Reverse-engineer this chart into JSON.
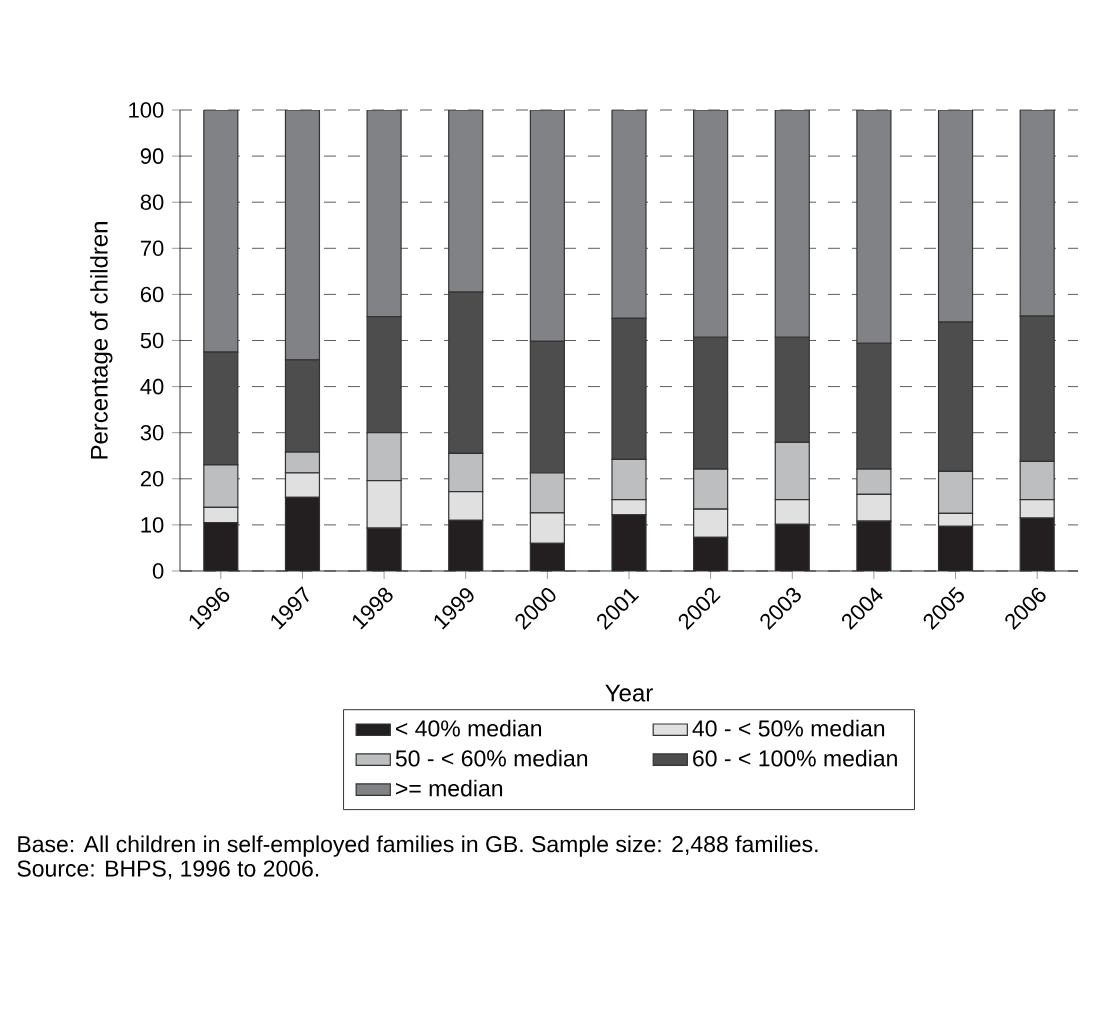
{
  "chart_data": {
    "type": "bar",
    "stacked": true,
    "xlabel": "Year",
    "ylabel": "Percentage of children",
    "categories": [
      "1996",
      "1997",
      "1998",
      "1999",
      "2000",
      "2001",
      "2002",
      "2003",
      "2004",
      "2005",
      "2006"
    ],
    "series": [
      {
        "name": "< 40% median",
        "color": "#231f20",
        "values": [
          10.5,
          16,
          9.3,
          11,
          6,
          12.2,
          7.3,
          10.1,
          10.8,
          9.7,
          11.5
        ]
      },
      {
        "name": "40 - < 50% median",
        "color": "#e0e0e0",
        "values": [
          3.3,
          5.3,
          10.3,
          6.2,
          6.6,
          3.3,
          6.1,
          5.4,
          5.8,
          2.8,
          4
        ]
      },
      {
        "name": "50 - < 60% median",
        "color": "#bcbec0",
        "values": [
          9.2,
          4.5,
          10.4,
          8.3,
          8.7,
          8.7,
          8.7,
          12.4,
          5.5,
          9.1,
          8.3
        ]
      },
      {
        "name": "60 - < 100% median",
        "color": "#4d4d4d",
        "values": [
          24.5,
          20,
          25.2,
          35,
          28.5,
          30.6,
          28.6,
          22.8,
          27.3,
          32.4,
          31.5
        ]
      },
      {
        "name": ">= median",
        "color": "#808285",
        "values": [
          52.5,
          54.2,
          44.8,
          39.5,
          50.2,
          45.2,
          49.3,
          49.3,
          50.6,
          46,
          44.7
        ]
      }
    ],
    "ylim": [
      0,
      100
    ],
    "yticks": [
      0,
      10,
      20,
      30,
      40,
      50,
      60,
      70,
      80,
      90,
      100
    ],
    "grid": "y",
    "legend": "bottom",
    "annotations": [
      "Base: All children in self-employed families in GB. Sample size: 2,488 families.",
      "Source: BHPS, 1996 to 2006."
    ]
  }
}
